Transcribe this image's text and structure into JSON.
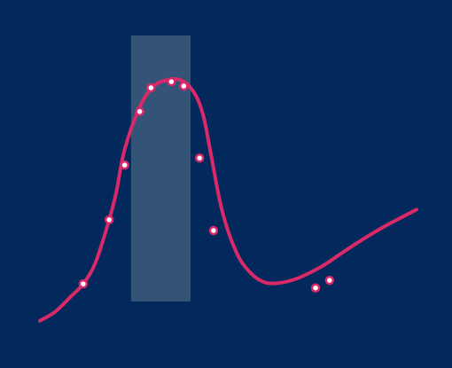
{
  "chart_data": {
    "type": "line",
    "title": "",
    "xlabel": "",
    "ylabel": "",
    "grid": false,
    "legend": "none",
    "xlim": [
      0,
      100
    ],
    "ylim": [
      0,
      100
    ],
    "highlight_band": {
      "x_start": 24.2,
      "x_end": 40.0
    },
    "curve": {
      "x": [
        0,
        4,
        8,
        11.5,
        14.8,
        18.4,
        20.3,
        22.5,
        26.5,
        30.2,
        34.9,
        38.2,
        41.4,
        43.5,
        45.5,
        48.4,
        52.3,
        56.2,
        60,
        64,
        68,
        72,
        76,
        80,
        84,
        88,
        92,
        96,
        100
      ],
      "y": [
        1,
        4,
        9,
        13.6,
        21,
        35.5,
        45,
        59.5,
        74,
        81.2,
        83.5,
        82.7,
        78,
        70.5,
        57.3,
        38.5,
        24,
        17,
        14,
        14,
        15.3,
        17.6,
        20.5,
        24,
        27.4,
        30.6,
        33.6,
        36.3,
        39
      ]
    },
    "series": [
      {
        "x": [
          11.5,
          18.4,
          22.5,
          26.5,
          29.5,
          34.9,
          38.2,
          42.4,
          46.1,
          73.2,
          76.9
        ],
        "y": [
          13.6,
          35.5,
          54.2,
          72.5,
          80.6,
          82.7,
          81.2,
          56.6,
          31.8,
          12.2,
          14.8
        ]
      }
    ],
    "colors": {
      "background": "#03285b",
      "line": "#da2968",
      "band": "#3c5b7d",
      "marker_fill": "#ffffff"
    }
  }
}
